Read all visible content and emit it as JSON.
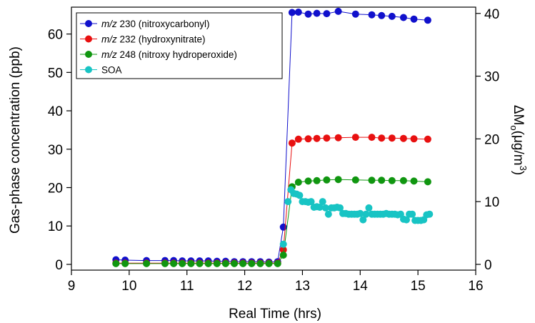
{
  "chart_data": {
    "type": "scatter",
    "x_label": "Real Time (hrs)",
    "y_label": "Gas-phase concentration (ppb)",
    "y2_label": {
      "delta": "ΔM",
      "sub": "o",
      "units": "(μg/m",
      "sup": "3",
      "close": ")"
    },
    "xlim": [
      9,
      16
    ],
    "ylim": [
      -1.5,
      67
    ],
    "y2lim": [
      -0.92,
      41.0
    ],
    "x_ticks": [
      9,
      10,
      11,
      12,
      13,
      14,
      15,
      16
    ],
    "y_ticks": [
      0,
      10,
      20,
      30,
      40,
      50,
      60
    ],
    "y2_ticks": [
      0,
      10,
      20,
      30,
      40
    ],
    "grid": false,
    "legend_position": "top-left",
    "series": [
      {
        "key": "mz230",
        "name_italic": "m/z",
        "name_rest": " 230 (nitroxycarbonyl)",
        "color": "#1010cc",
        "axis": "left",
        "line": true,
        "x": [
          9.77,
          9.93,
          10.3,
          10.62,
          10.77,
          10.92,
          11.07,
          11.22,
          11.37,
          11.52,
          11.67,
          11.82,
          11.97,
          12.12,
          12.27,
          12.42,
          12.57,
          12.67,
          12.82,
          12.93,
          13.1,
          13.25,
          13.42,
          13.62,
          13.92,
          14.2,
          14.37,
          14.55,
          14.75,
          14.93,
          15.17
        ],
        "y": [
          1.2,
          1.1,
          1.0,
          1.0,
          1.0,
          0.9,
          0.9,
          0.9,
          0.9,
          0.8,
          0.8,
          0.7,
          0.7,
          0.7,
          0.7,
          0.6,
          0.7,
          9.7,
          65.6,
          65.7,
          65.2,
          65.4,
          65.3,
          65.9,
          65.2,
          65.0,
          64.8,
          64.6,
          64.3,
          63.9,
          63.6
        ]
      },
      {
        "key": "mz232",
        "name_italic": "m/z",
        "name_rest": " 232 (hydroxynitrate)",
        "color": "#e81010",
        "axis": "left",
        "line": true,
        "x": [
          9.77,
          9.93,
          10.3,
          10.62,
          10.77,
          10.92,
          11.07,
          11.22,
          11.37,
          11.52,
          11.67,
          11.82,
          11.97,
          12.12,
          12.27,
          12.42,
          12.57,
          12.67,
          12.82,
          12.93,
          13.1,
          13.25,
          13.42,
          13.62,
          13.92,
          14.2,
          14.37,
          14.55,
          14.75,
          14.93,
          15.17
        ],
        "y": [
          0.3,
          0.3,
          0.3,
          0.3,
          0.3,
          0.3,
          0.3,
          0.3,
          0.3,
          0.3,
          0.3,
          0.3,
          0.3,
          0.3,
          0.3,
          0.3,
          0.3,
          3.8,
          31.6,
          32.6,
          32.7,
          32.8,
          32.9,
          33.0,
          33.1,
          33.1,
          32.9,
          32.9,
          32.8,
          32.7,
          32.6
        ]
      },
      {
        "key": "mz248",
        "name_italic": "m/z",
        "name_rest": " 248 (nitroxy hydroperoxide)",
        "color": "#109610",
        "axis": "left",
        "line": true,
        "x": [
          9.77,
          9.93,
          10.3,
          10.62,
          10.77,
          10.92,
          11.07,
          11.22,
          11.37,
          11.52,
          11.67,
          11.82,
          11.97,
          12.12,
          12.27,
          12.42,
          12.57,
          12.67,
          12.82,
          12.93,
          13.1,
          13.25,
          13.42,
          13.62,
          13.92,
          14.2,
          14.37,
          14.55,
          14.75,
          14.93,
          15.17
        ],
        "y": [
          0.2,
          0.2,
          0.2,
          0.2,
          0.2,
          0.2,
          0.2,
          0.2,
          0.2,
          0.2,
          0.2,
          0.2,
          0.2,
          0.2,
          0.2,
          0.2,
          0.2,
          2.4,
          20.2,
          21.4,
          21.7,
          21.8,
          22.0,
          22.1,
          22.0,
          21.9,
          21.9,
          21.8,
          21.8,
          21.7,
          21.5
        ]
      },
      {
        "key": "soa",
        "name_italic": "",
        "name_rest": "SOA",
        "color": "#18c4c4",
        "axis": "right",
        "line": false,
        "x": [
          12.67,
          12.75,
          12.8,
          12.85,
          12.9,
          12.95,
          13.0,
          13.05,
          13.1,
          13.15,
          13.2,
          13.25,
          13.3,
          13.35,
          13.4,
          13.45,
          13.5,
          13.55,
          13.6,
          13.65,
          13.7,
          13.75,
          13.8,
          13.85,
          13.9,
          13.95,
          14.0,
          14.05,
          14.1,
          14.15,
          14.2,
          14.25,
          14.3,
          14.35,
          14.4,
          14.45,
          14.5,
          14.55,
          14.6,
          14.65,
          14.7,
          14.75,
          14.8,
          14.85,
          14.9,
          14.95,
          15.0,
          15.05,
          15.1,
          15.15,
          15.2
        ],
        "y": [
          3.2,
          10.0,
          11.9,
          11.3,
          11.2,
          11.0,
          10.0,
          10.0,
          9.9,
          10.0,
          9.1,
          9.2,
          9.1,
          10.0,
          9.0,
          8.0,
          9.0,
          9.0,
          9.1,
          9.0,
          8.1,
          8.1,
          8.0,
          8.0,
          8.0,
          8.0,
          8.1,
          7.1,
          8.0,
          9.0,
          8.0,
          8.0,
          8.0,
          8.0,
          8.0,
          8.1,
          8.0,
          8.0,
          8.0,
          7.9,
          8.0,
          7.2,
          7.1,
          8.0,
          8.0,
          7.0,
          7.0,
          7.0,
          7.1,
          7.9,
          8.0
        ]
      }
    ]
  }
}
